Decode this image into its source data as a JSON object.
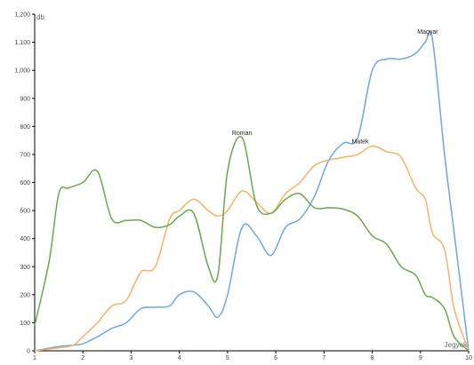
{
  "chart_data": {
    "type": "line",
    "xlabel": "Jegyek",
    "ylabel": "db",
    "xlim": [
      1,
      10
    ],
    "ylim": [
      0,
      1200
    ],
    "x_ticks": [
      "1",
      "2",
      "3",
      "4",
      "5",
      "6",
      "7",
      "8",
      "9",
      "10"
    ],
    "y_ticks": [
      "0",
      "100",
      "200",
      "300",
      "400",
      "500",
      "600",
      "700",
      "800",
      "900",
      "1,000",
      "1,100",
      "1,200"
    ],
    "grid": false,
    "legend": "none",
    "series": [
      {
        "name": "Magyar",
        "color": "#6fa8dc",
        "x": [
          1,
          1.5,
          1.8,
          2,
          2.3,
          2.6,
          2.9,
          3.2,
          3.5,
          3.8,
          4,
          4.3,
          4.6,
          4.8,
          5,
          5.3,
          5.6,
          5.9,
          6.2,
          6.5,
          6.8,
          7.1,
          7.4,
          7.7,
          8,
          8.3,
          8.6,
          8.9,
          9.1,
          9.25,
          9.5,
          9.7,
          10
        ],
        "y": [
          0,
          15,
          20,
          25,
          50,
          80,
          100,
          150,
          155,
          160,
          200,
          210,
          160,
          120,
          200,
          440,
          410,
          340,
          440,
          470,
          550,
          680,
          740,
          760,
          1000,
          1040,
          1040,
          1060,
          1100,
          1110,
          700,
          420,
          0
        ]
      },
      {
        "name": "Matek",
        "color": "#f6b26b",
        "x": [
          1,
          1.5,
          1.8,
          2,
          2.3,
          2.6,
          2.9,
          3.2,
          3.5,
          3.8,
          4,
          4.3,
          4.6,
          4.8,
          5,
          5.3,
          5.6,
          5.9,
          6.2,
          6.5,
          6.8,
          7.1,
          7.4,
          7.7,
          8,
          8.3,
          8.6,
          8.9,
          9.1,
          9.25,
          9.5,
          9.7,
          10
        ],
        "y": [
          0,
          10,
          20,
          50,
          100,
          160,
          180,
          280,
          300,
          470,
          500,
          540,
          500,
          480,
          500,
          570,
          530,
          490,
          560,
          600,
          660,
          680,
          690,
          700,
          730,
          710,
          690,
          580,
          540,
          420,
          360,
          150,
          0
        ]
      },
      {
        "name": "Roman",
        "color": "#6aa84f",
        "x": [
          1,
          1.3,
          1.5,
          1.7,
          2,
          2.3,
          2.6,
          2.9,
          3.2,
          3.5,
          3.8,
          4,
          4.3,
          4.6,
          4.8,
          5,
          5.3,
          5.6,
          5.9,
          6.2,
          6.5,
          6.8,
          7.1,
          7.4,
          7.7,
          8,
          8.3,
          8.6,
          8.9,
          9.1,
          9.25,
          9.5,
          9.7,
          10
        ],
        "y": [
          90,
          320,
          560,
          580,
          600,
          640,
          470,
          465,
          465,
          440,
          450,
          480,
          490,
          300,
          270,
          640,
          760,
          520,
          490,
          540,
          560,
          510,
          510,
          505,
          480,
          410,
          380,
          300,
          270,
          200,
          190,
          150,
          50,
          0
        ]
      }
    ],
    "annotations": [
      {
        "text": "Magyar",
        "x": 9.15,
        "y": 1130
      },
      {
        "text": "Matek",
        "x": 7.75,
        "y": 740
      },
      {
        "text": "Roman",
        "x": 5.3,
        "y": 770
      }
    ]
  }
}
